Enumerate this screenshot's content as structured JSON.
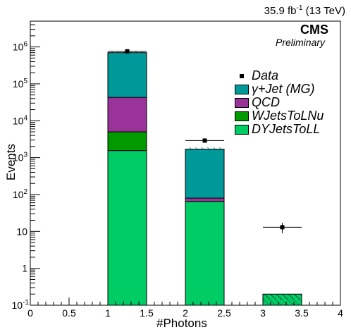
{
  "header": {
    "lumi_text": "35.9 fb",
    "lumi_sup": "-1",
    "lumi_suffix": " (13 TeV)",
    "experiment": "CMS",
    "status": "Preliminary"
  },
  "chart_data": {
    "type": "bar",
    "stacked": true,
    "xlabel": "#Photons",
    "ylabel": "Events",
    "xlim": [
      0,
      4
    ],
    "ylim": [
      0.1,
      5000000
    ],
    "yscale": "log",
    "x_ticks": [
      "0",
      "0.5",
      "1",
      "1.5",
      "2",
      "2.5",
      "3",
      "3.5",
      "4"
    ],
    "y_ticks": [
      "10^-1",
      "1",
      "10",
      "10^2",
      "10^3",
      "10^4",
      "10^5",
      "10^6"
    ],
    "bins": [
      [
        1,
        1.5
      ],
      [
        2,
        2.5
      ],
      [
        3,
        3.5
      ]
    ],
    "series": [
      {
        "name": "DYJetsToLL",
        "color": "#00cc66",
        "values": [
          1550,
          65,
          0
        ]
      },
      {
        "name": "WJetsToLNu",
        "color": "#009900",
        "values": [
          3450,
          0,
          0
        ]
      },
      {
        "name": "QCD",
        "color": "#993399",
        "values": [
          38000,
          15,
          0
        ]
      },
      {
        "name": "γ+Jet (MG)",
        "color": "#009999",
        "values": [
          657000,
          1620,
          0
        ]
      }
    ],
    "mc_hatched_region": {
      "bin": [
        3,
        3.5
      ],
      "low": 0.1,
      "high": 0.2
    },
    "mc_uncertainty_hatch_tops": [
      [
        1,
        1.5,
        720000,
        740000
      ],
      [
        2,
        2.5,
        1650,
        1900
      ],
      [
        3,
        3.5,
        0.14,
        0.2
      ]
    ],
    "data": {
      "name": "Data",
      "points": [
        {
          "x": 1.25,
          "y": 760000,
          "xerr": 0.25
        },
        {
          "x": 2.25,
          "y": 2900,
          "xerr": 0.25
        },
        {
          "x": 3.25,
          "y": 13,
          "xerr": 0.25,
          "yerr": 4
        }
      ]
    },
    "legend": {
      "position": "upper-right",
      "entries": [
        "Data",
        "γ+Jet (MG)",
        "QCD",
        "WJetsToLNu",
        "DYJetsToLL"
      ]
    },
    "grid": false
  }
}
